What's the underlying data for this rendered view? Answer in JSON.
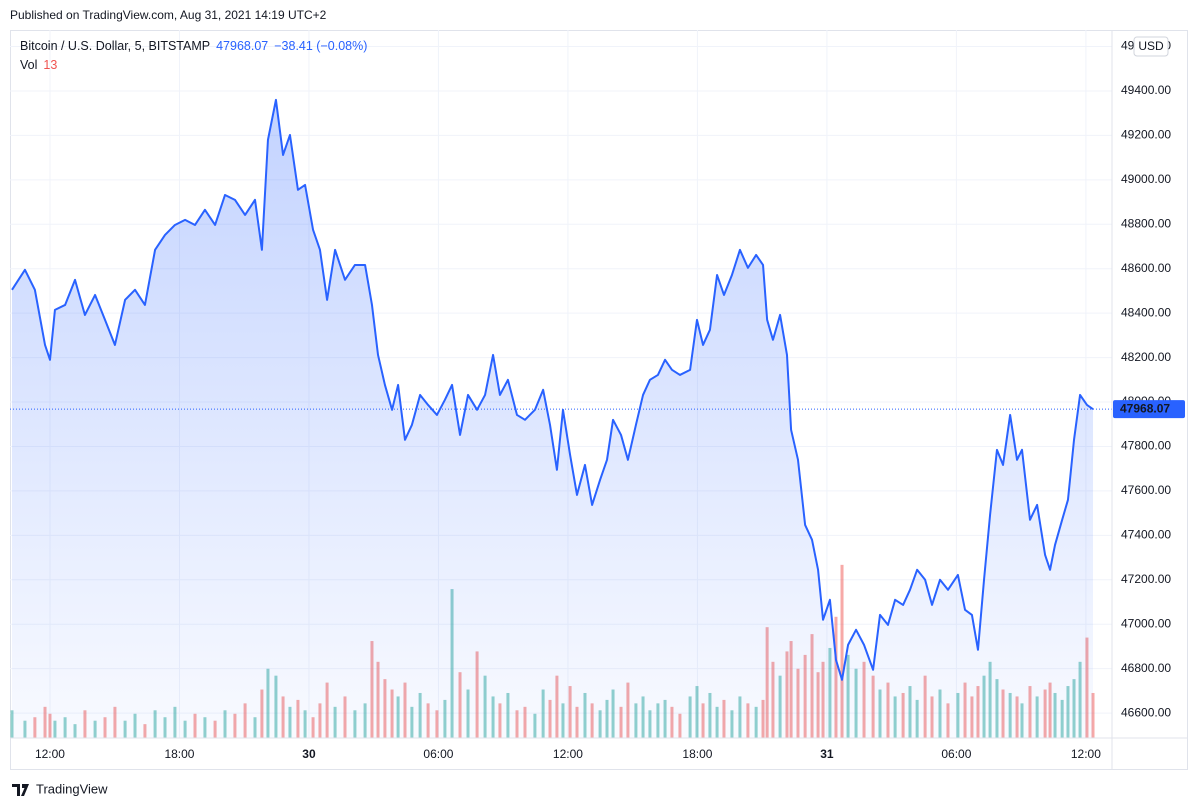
{
  "header": {
    "published": "Published on TradingView.com, Aug 31, 2021 14:19 UTC+2"
  },
  "footer": {
    "brand": "TradingView"
  },
  "chart_data": {
    "type": "area",
    "symbol": "Bitcoin / U.S. Dollar, 5, BITSTAMP",
    "change": "−38.41 (−0.08%)",
    "currency": "USD",
    "grid": true,
    "up_color": "#26a69a",
    "down_color": "#ef5350",
    "xlim": [
      10.24,
      61.21
    ],
    "xticks": [
      {
        "value": 12,
        "label": "12:00"
      },
      {
        "value": 18,
        "label": "18:00"
      },
      {
        "value": 24,
        "label": "30"
      },
      {
        "value": 30,
        "label": "06:00"
      },
      {
        "value": 36,
        "label": "12:00"
      },
      {
        "value": 42,
        "label": "18:00"
      },
      {
        "value": 48,
        "label": "31"
      },
      {
        "value": 54,
        "label": "06:00"
      },
      {
        "value": 60,
        "label": "12:00"
      }
    ],
    "ylim": [
      46488,
      49652
    ],
    "yticks": [
      {
        "value": 46600,
        "label": "46600.00"
      },
      {
        "value": 46800,
        "label": "46800.00"
      },
      {
        "value": 47000,
        "label": "47000.00"
      },
      {
        "value": 47200,
        "label": "47200.00"
      },
      {
        "value": 47400,
        "label": "47400.00"
      },
      {
        "value": 47600,
        "label": "47600.00"
      },
      {
        "value": 47800,
        "label": "47800.00"
      },
      {
        "value": 48000,
        "label": "48000.00"
      },
      {
        "value": 48200,
        "label": "48200.00"
      },
      {
        "value": 48400,
        "label": "48400.00"
      },
      {
        "value": 48600,
        "label": "48600.00"
      },
      {
        "value": 48800,
        "label": "48800.00"
      },
      {
        "value": 49000,
        "label": "49000.00"
      },
      {
        "value": 49200,
        "label": "49200.00"
      },
      {
        "value": 49400,
        "label": "49400.00"
      },
      {
        "value": 49600,
        "label": "49600.00"
      }
    ],
    "y2lim": [
      0,
      203
    ],
    "x": [
      10.24,
      10.84,
      11.3,
      11.77,
      12.0,
      12.23,
      12.7,
      13.16,
      13.62,
      14.09,
      14.55,
      15.01,
      15.48,
      15.94,
      16.4,
      16.87,
      17.33,
      17.79,
      18.26,
      18.72,
      19.18,
      19.65,
      20.11,
      20.57,
      21.04,
      21.5,
      21.82,
      22.1,
      22.47,
      22.8,
      23.12,
      23.49,
      23.82,
      24.19,
      24.51,
      24.84,
      25.21,
      25.67,
      26.13,
      26.6,
      26.92,
      27.2,
      27.52,
      27.85,
      28.13,
      28.45,
      28.77,
      29.15,
      29.52,
      29.93,
      30.3,
      30.63,
      31.0,
      31.37,
      31.79,
      32.16,
      32.53,
      32.85,
      33.22,
      33.64,
      34.01,
      34.47,
      34.85,
      35.17,
      35.49,
      35.77,
      36.1,
      36.42,
      36.79,
      37.12,
      37.49,
      37.81,
      38.09,
      38.46,
      38.78,
      39.15,
      39.48,
      39.8,
      40.17,
      40.5,
      40.82,
      41.19,
      41.66,
      41.98,
      42.26,
      42.58,
      42.91,
      43.23,
      43.6,
      43.97,
      44.34,
      44.72,
      45.04,
      45.23,
      45.5,
      45.83,
      46.15,
      46.34,
      46.66,
      46.99,
      47.31,
      47.59,
      47.82,
      48.14,
      48.42,
      48.7,
      48.98,
      49.35,
      49.72,
      50.14,
      50.46,
      50.83,
      51.16,
      51.53,
      51.85,
      52.18,
      52.55,
      52.87,
      53.24,
      53.61,
      54.07,
      54.4,
      54.72,
      55.0,
      55.28,
      55.56,
      55.88,
      56.16,
      56.49,
      56.81,
      57.04,
      57.41,
      57.74,
      58.11,
      58.34,
      58.57,
      58.9,
      59.17,
      59.45,
      59.73,
      60.05,
      60.33
    ],
    "series": [
      {
        "name": "Bitcoin / U.S. Dollar",
        "color": "#2962ff",
        "values": [
          48505,
          48595,
          48505,
          48257,
          48190,
          48415,
          48437,
          48550,
          48392,
          48482,
          48370,
          48257,
          48460,
          48505,
          48437,
          48685,
          48752,
          48797,
          48820,
          48797,
          48865,
          48797,
          48932,
          48910,
          48842,
          48910,
          48685,
          49180,
          49360,
          49112,
          49202,
          48955,
          48977,
          48775,
          48685,
          48460,
          48685,
          48550,
          48617,
          48617,
          48437,
          48212,
          48077,
          47965,
          48077,
          47830,
          47897,
          48032,
          47987,
          47942,
          48010,
          48077,
          47852,
          48032,
          47965,
          48032,
          48212,
          48032,
          48100,
          47942,
          47920,
          47965,
          48055,
          47897,
          47695,
          47965,
          47762,
          47582,
          47717,
          47537,
          47650,
          47740,
          47920,
          47852,
          47740,
          47897,
          48032,
          48100,
          48122,
          48190,
          48145,
          48122,
          48145,
          48370,
          48257,
          48325,
          48572,
          48482,
          48572,
          48685,
          48604,
          48662,
          48617,
          48370,
          48280,
          48392,
          48212,
          47875,
          47740,
          47447,
          47380,
          47245,
          47020,
          47110,
          46840,
          46750,
          46907,
          46975,
          46907,
          46795,
          47042,
          46997,
          47110,
          47087,
          47155,
          47245,
          47200,
          47087,
          47200,
          47155,
          47222,
          47065,
          47042,
          46885,
          47200,
          47492,
          47785,
          47717,
          47942,
          47740,
          47785,
          47470,
          47537,
          47312,
          47245,
          47357,
          47470,
          47560,
          47830,
          48032,
          47987,
          47968.07
        ]
      },
      {
        "name": "Vol",
        "axis": "y2",
        "values": [
          8,
          5,
          6,
          9,
          7,
          5,
          6,
          4,
          8,
          5,
          6,
          9,
          5,
          7,
          4,
          8,
          6,
          9,
          5,
          7,
          6,
          5,
          8,
          7,
          10,
          6,
          14,
          20,
          18,
          12,
          9,
          11,
          8,
          6,
          10,
          16,
          9,
          12,
          8,
          10,
          28,
          22,
          17,
          14,
          12,
          16,
          9,
          13,
          10,
          8,
          11,
          43,
          19,
          14,
          25,
          18,
          12,
          10,
          13,
          8,
          9,
          7,
          14,
          11,
          18,
          10,
          15,
          9,
          13,
          10,
          8,
          11,
          14,
          9,
          16,
          10,
          12,
          8,
          10,
          11,
          9,
          7,
          12,
          15,
          10,
          13,
          9,
          11,
          8,
          12,
          10,
          9,
          11,
          32,
          22,
          18,
          25,
          28,
          20,
          24,
          30,
          19,
          22,
          26,
          35,
          50,
          24,
          20,
          22,
          18,
          14,
          16,
          12,
          13,
          15,
          11,
          18,
          12,
          14,
          10,
          13,
          16,
          12,
          15,
          18,
          22,
          17,
          14,
          13,
          12,
          10,
          15,
          12,
          14,
          16,
          13,
          11,
          15,
          17,
          22,
          29,
          13
        ]
      }
    ]
  }
}
